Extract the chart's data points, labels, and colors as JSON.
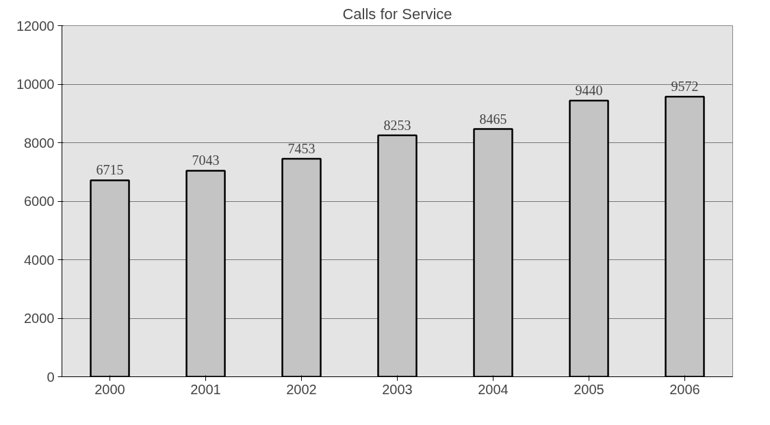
{
  "chart_data": {
    "type": "bar",
    "title": "Calls for Service",
    "categories": [
      "2000",
      "2001",
      "2002",
      "2003",
      "2004",
      "2005",
      "2006"
    ],
    "values": [
      6715,
      7043,
      7453,
      8253,
      8465,
      9440,
      9572
    ],
    "color": "#c4c4c4",
    "ylim": [
      0,
      12000
    ],
    "yticks": [
      0,
      2000,
      4000,
      6000,
      8000,
      10000,
      12000
    ],
    "grid": "y",
    "data_labels": true
  }
}
